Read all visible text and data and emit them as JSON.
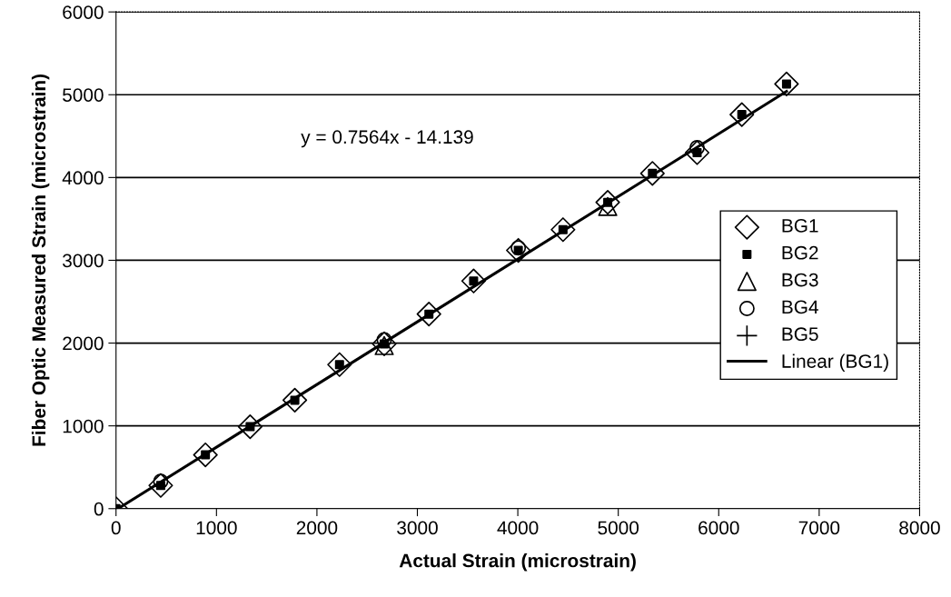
{
  "chart_data": {
    "type": "scatter",
    "xlabel": "Actual Strain (microstrain)",
    "ylabel": "Fiber Optic Measured Strain (microstrain)",
    "x": [
      0,
      445,
      890,
      1335,
      1780,
      2225,
      2670,
      3115,
      3560,
      4005,
      4450,
      4895,
      5340,
      5785,
      6230,
      6675
    ],
    "series": [
      {
        "name": "BG1",
        "color": "#000000",
        "marker": "diamond",
        "values": [
          0,
          280,
          650,
          990,
          1310,
          1740,
          1990,
          2350,
          2750,
          3120,
          3370,
          3700,
          4050,
          4300,
          4760,
          5130
        ]
      },
      {
        "name": "BG2",
        "color": "#000000",
        "marker": "square",
        "values": [
          0,
          280,
          650,
          990,
          1310,
          1740,
          1990,
          2350,
          2750,
          3120,
          3370,
          3700,
          4050,
          4300,
          4760,
          5130
        ]
      },
      {
        "name": "BG3",
        "color": "#000000",
        "marker": "triangle",
        "values": [
          null,
          null,
          null,
          null,
          null,
          null,
          1970,
          null,
          null,
          null,
          null,
          3650,
          null,
          null,
          null,
          null
        ]
      },
      {
        "name": "BG4",
        "color": "#000000",
        "marker": "circle",
        "values": [
          null,
          330,
          null,
          null,
          null,
          null,
          2040,
          null,
          null,
          3150,
          null,
          null,
          null,
          4360,
          null,
          null
        ]
      },
      {
        "name": "BG5",
        "color": "#000000",
        "marker": "cross",
        "values": [
          null,
          null,
          null,
          null,
          null,
          null,
          null,
          null,
          null,
          null,
          null,
          null,
          null,
          null,
          null,
          null
        ]
      },
      {
        "name": "Linear (BG1)",
        "type": "line",
        "color": "#000000",
        "marker": "none",
        "line_style": "solid",
        "x": [
          20,
          6675
        ],
        "values": [
          0,
          5040
        ]
      }
    ],
    "annotations": [
      "y = 0.7564x - 14.139"
    ],
    "xlim": [
      0,
      8000
    ],
    "xticks": [
      0,
      1000,
      2000,
      3000,
      4000,
      5000,
      6000,
      7000,
      8000
    ],
    "ylim": [
      0,
      6000
    ],
    "yticks": [
      0,
      1000,
      2000,
      3000,
      4000,
      5000,
      6000
    ],
    "grid": "y",
    "legend": "right"
  }
}
